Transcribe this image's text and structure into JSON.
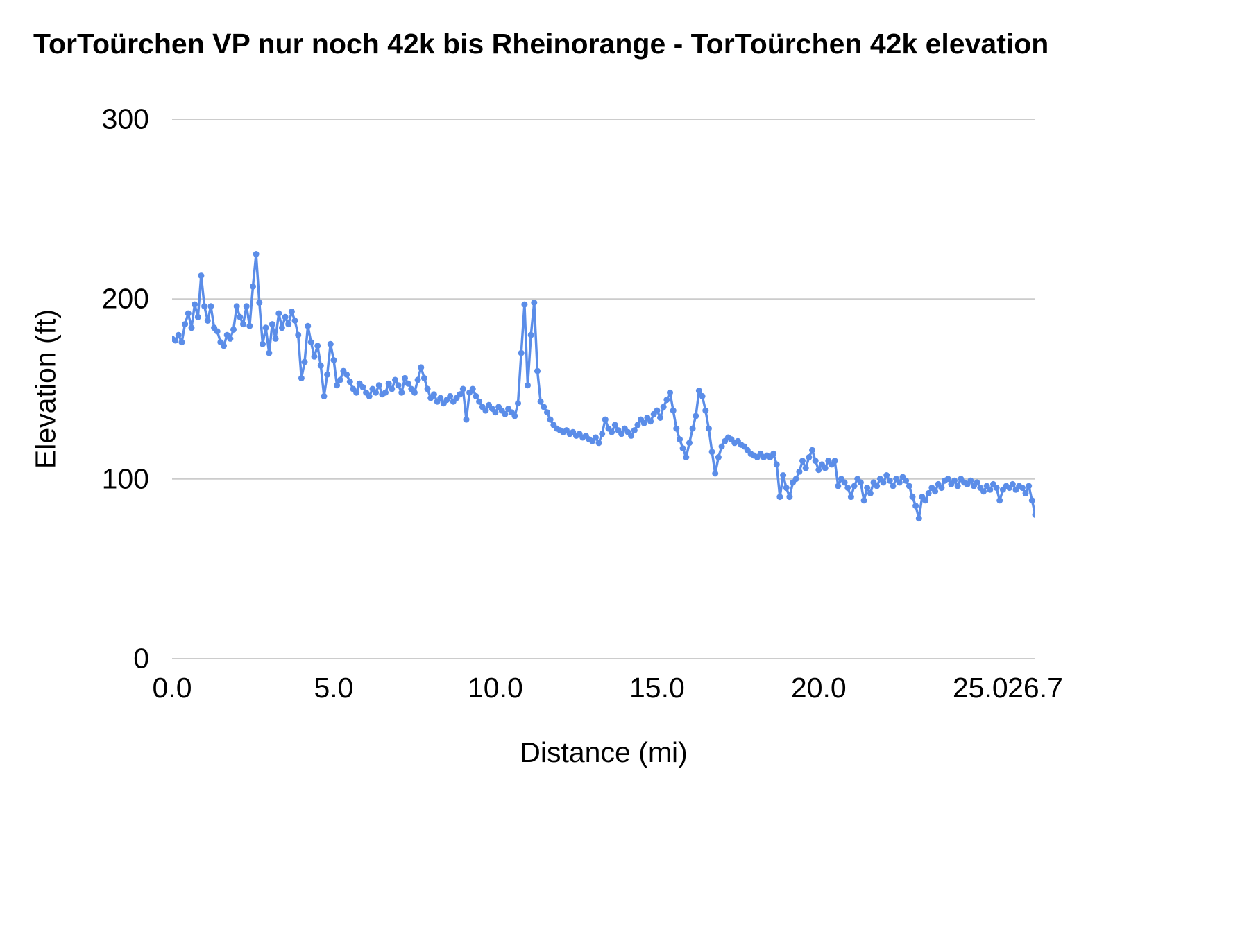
{
  "chart_data": {
    "type": "line",
    "title": "TorToürchen VP nur noch 42k bis Rheinorange - TorToürchen 42k elevation",
    "xlabel": "Distance (mi)",
    "ylabel": "Elevation (ft)",
    "xlim": [
      0,
      26.7
    ],
    "ylim": [
      0,
      300
    ],
    "grid": "horizontal",
    "legend": "none",
    "markers": true,
    "colors": {
      "series": "#5b8de8",
      "gridline": "#cccccc",
      "text": "#000000"
    },
    "y_ticks": [
      0,
      100,
      200,
      300
    ],
    "x_ticks": [
      {
        "value": 0,
        "label": "0.0"
      },
      {
        "value": 5,
        "label": "5.0"
      },
      {
        "value": 10,
        "label": "10.0"
      },
      {
        "value": 15,
        "label": "15.0"
      },
      {
        "value": 20,
        "label": "20.0"
      },
      {
        "value": 25,
        "label": "25.0"
      },
      {
        "value": 26.7,
        "label": "26.7"
      }
    ],
    "x_step": 0.1,
    "x_start": 0,
    "values": [
      178,
      177,
      180,
      176,
      186,
      192,
      184,
      197,
      190,
      213,
      196,
      188,
      196,
      184,
      182,
      176,
      174,
      180,
      178,
      183,
      196,
      190,
      186,
      196,
      185,
      207,
      225,
      198,
      175,
      184,
      170,
      186,
      178,
      192,
      184,
      190,
      186,
      193,
      188,
      180,
      156,
      165,
      185,
      176,
      168,
      174,
      163,
      146,
      158,
      175,
      166,
      152,
      155,
      160,
      158,
      154,
      150,
      148,
      153,
      151,
      148,
      146,
      150,
      148,
      152,
      147,
      148,
      153,
      150,
      155,
      152,
      148,
      156,
      153,
      150,
      148,
      155,
      162,
      156,
      150,
      145,
      147,
      143,
      145,
      142,
      144,
      146,
      143,
      145,
      147,
      150,
      133,
      148,
      150,
      146,
      143,
      140,
      138,
      141,
      139,
      137,
      140,
      138,
      136,
      139,
      137,
      135,
      142,
      170,
      197,
      152,
      180,
      198,
      160,
      143,
      140,
      137,
      133,
      130,
      128,
      127,
      126,
      127,
      125,
      126,
      124,
      125,
      123,
      124,
      122,
      121,
      123,
      120,
      125,
      133,
      128,
      126,
      130,
      127,
      125,
      128,
      126,
      124,
      127,
      130,
      133,
      131,
      134,
      132,
      136,
      138,
      134,
      140,
      144,
      148,
      138,
      128,
      122,
      117,
      112,
      120,
      128,
      135,
      149,
      146,
      138,
      128,
      115,
      103,
      112,
      118,
      121,
      123,
      122,
      120,
      121,
      119,
      118,
      116,
      114,
      113,
      112,
      114,
      112,
      113,
      112,
      114,
      108,
      90,
      102,
      95,
      90,
      98,
      100,
      104,
      110,
      106,
      112,
      116,
      110,
      105,
      108,
      106,
      110,
      108,
      110,
      96,
      100,
      98,
      95,
      90,
      96,
      100,
      98,
      88,
      95,
      92,
      98,
      96,
      100,
      98,
      102,
      99,
      96,
      100,
      98,
      101,
      99,
      96,
      90,
      85,
      78,
      90,
      88,
      92,
      95,
      93,
      97,
      95,
      99,
      100,
      97,
      99,
      96,
      100,
      98,
      97,
      99,
      96,
      98,
      95,
      93,
      96,
      94,
      97,
      95,
      88,
      94,
      96,
      95,
      97,
      94,
      96,
      95,
      92,
      96,
      88,
      80
    ]
  }
}
